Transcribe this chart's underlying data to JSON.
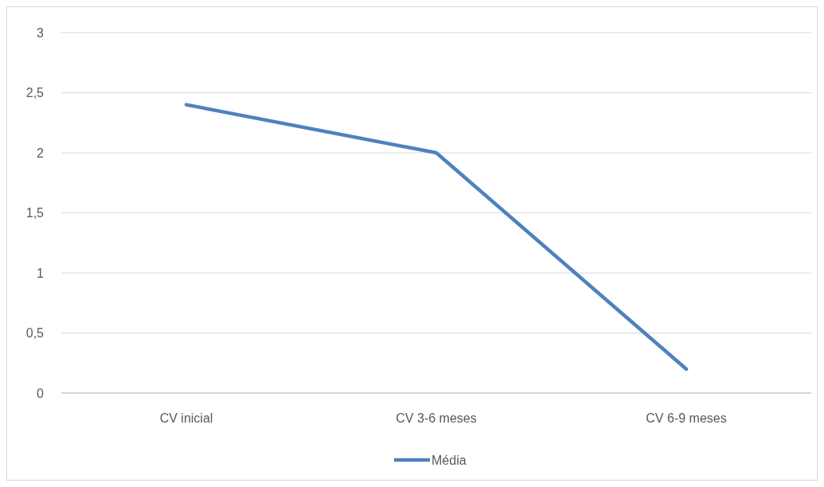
{
  "chart_data": {
    "type": "line",
    "categories": [
      "CV inicial",
      "CV 3-6 meses",
      "CV 6-9 meses"
    ],
    "series": [
      {
        "name": "Média",
        "color": "#4f81bd",
        "values": [
          2.4,
          2.0,
          0.2
        ]
      }
    ],
    "ylim": [
      0,
      3
    ],
    "yticks": [
      {
        "value": 0,
        "label": "0"
      },
      {
        "value": 0.5,
        "label": "0,5"
      },
      {
        "value": 1,
        "label": "1"
      },
      {
        "value": 1.5,
        "label": "1,5"
      },
      {
        "value": 2,
        "label": "2"
      },
      {
        "value": 2.5,
        "label": "2,5"
      },
      {
        "value": 3,
        "label": "3"
      }
    ],
    "grid": "y",
    "legend": "bottom",
    "marker": "none",
    "line_style": "solid"
  }
}
